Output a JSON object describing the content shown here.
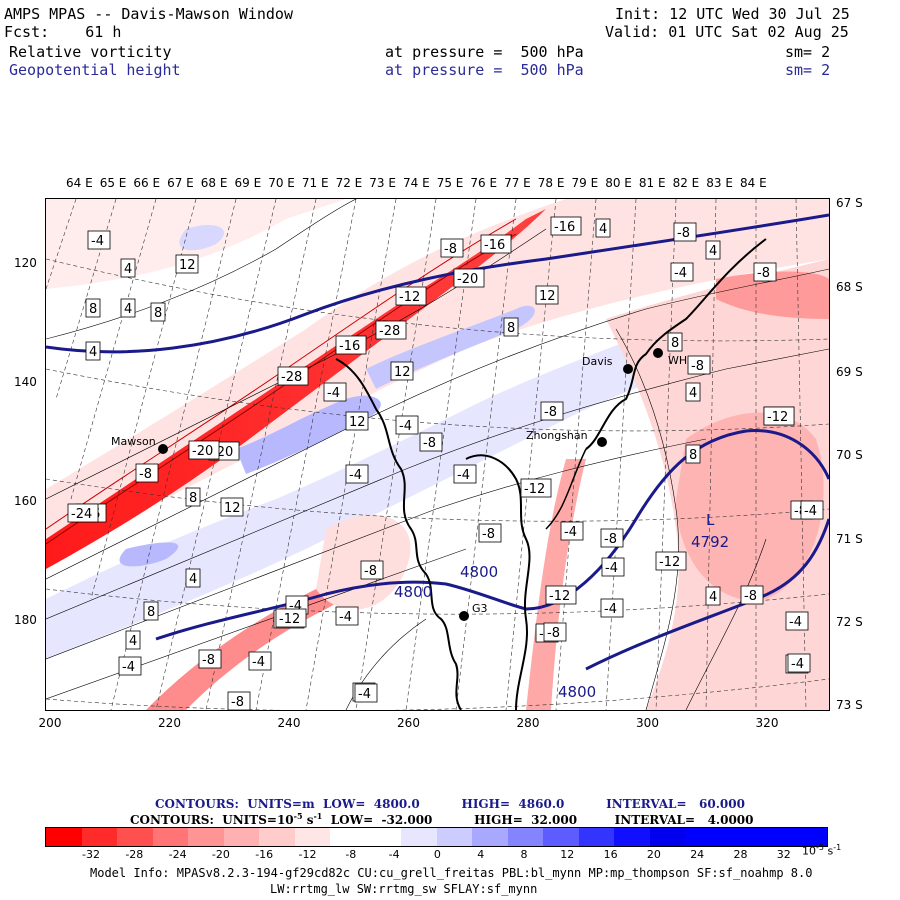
{
  "header": {
    "title": "AMPS MPAS -- Davis-Mawson Window",
    "fcst": "Fcst:    61 h",
    "init": "Init: 12 UTC Wed 30 Jul 25",
    "valid": "Valid: 01 UTC Sat 02 Aug 25",
    "field1": "Relative vorticity",
    "field1_level": "at pressure =  500 hPa",
    "field1_sm": "sm= 2",
    "field2": "Geopotential height",
    "field2_level": "at pressure =  500 hPa",
    "field2_sm": "sm= 2"
  },
  "lon_labels": [
    "64 E",
    "65 E",
    "66 E",
    "67 E",
    "68 E",
    "69 E",
    "70 E",
    "71 E",
    "72 E",
    "73 E",
    "74 E",
    "75 E",
    "76 E",
    "77 E",
    "78 E",
    "79 E",
    "80 E",
    "81 E",
    "82 E",
    "83 E",
    "84 E"
  ],
  "lat_labels": [
    "67 S",
    "68 S",
    "69 S",
    "70 S",
    "71 S",
    "72 S",
    "73 S"
  ],
  "x_ticks": [
    "200",
    "220",
    "240",
    "260",
    "280",
    "300",
    "320"
  ],
  "y_ticks": [
    "120",
    "140",
    "160",
    "180"
  ],
  "stations": [
    {
      "name": "Mawson"
    },
    {
      "name": "Davis"
    },
    {
      "name": "WHP"
    },
    {
      "name": "Zhongshan"
    },
    {
      "name": "G3"
    }
  ],
  "height_labels": [
    "4800",
    "4800",
    "4800",
    "4792",
    "L"
  ],
  "contour_box_labels": [
    "-4",
    "4",
    "12",
    "4",
    "8",
    "8",
    "4",
    "-8",
    "-16",
    "-16",
    "4",
    "-8",
    "4",
    "-4",
    "-8",
    "12",
    "-12",
    "-20",
    "-28",
    "-28",
    "-4",
    "-8",
    "-12",
    "-8",
    "8",
    "8",
    "12",
    "-4",
    "-8",
    "-16",
    "-20",
    "-8",
    "8",
    "12",
    "-4",
    "-4",
    "-12",
    "-4",
    "-8",
    "12",
    "-16",
    "4",
    "-12",
    "-4",
    "-8",
    "-24",
    "-4",
    "8",
    "-8",
    "4",
    "-4",
    "-12",
    "-4",
    "-8",
    "4",
    "-4",
    "-12",
    "-8",
    "-4",
    "8",
    "4",
    "-8",
    "-4",
    "-8",
    "-4",
    "-12",
    "-8",
    "-4",
    "-4",
    "-4",
    "-4",
    "-8",
    "-20",
    "-12",
    "-8"
  ],
  "contours_info_1": "CONTOURS:  UNITS=m  LOW=  4800.0          HIGH=  4860.0          INTERVAL=   60.000",
  "contours_info_2": "CONTOURS:  UNITS=10",
  "contours_info_2b": "-5",
  "contours_info_2c": " s",
  "contours_info_2d": "-1",
  "contours_info_2e": "  LOW=  -32.000          HIGH=  32.000         INTERVAL=   4.0000",
  "colorbar": {
    "colors": [
      "#ff0000",
      "#ff2a2a",
      "#ff5050",
      "#ff7474",
      "#ff9494",
      "#ffb0b0",
      "#ffcccc",
      "#ffe6e6",
      "#ffffff",
      "#ffffff",
      "#e6e6ff",
      "#ccccff",
      "#a8a8ff",
      "#8484ff",
      "#5c5cff",
      "#3434ff",
      "#1010ff",
      "#0000ee",
      "#0000ff",
      "#0000ff",
      "#0000ff",
      "#0000ff"
    ],
    "labels": [
      "-32",
      "-28",
      "-24",
      "-20",
      "-16",
      "-12",
      "-8",
      "-4",
      "0",
      "4",
      "8",
      "12",
      "16",
      "20",
      "24",
      "28",
      "32"
    ],
    "unit": "10",
    "unit_exp": "-5",
    "unit_s": " s",
    "unit_s_exp": "-1"
  },
  "footer_line1": "Model Info: MPASv8.2.3-194-gf29cd82c CU:cu_grell_freitas PBL:bl_mynn MP:mp_thompson SF:sf_noahmp 8.0",
  "footer_line2": "LW:rrtmg_lw SW:rrtmg_sw SFLAY:sf_mynn"
}
